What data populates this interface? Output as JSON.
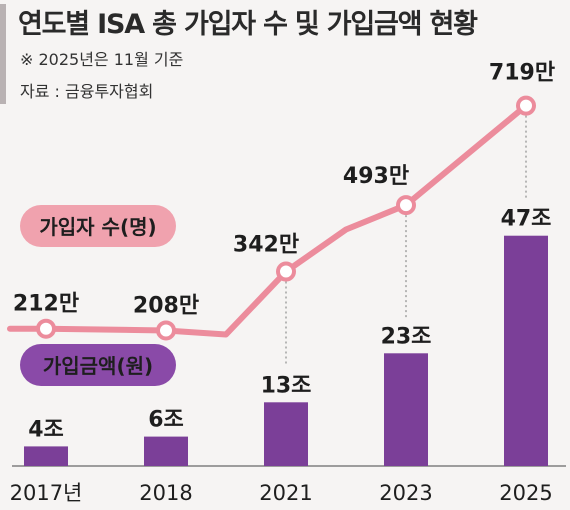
{
  "header": {
    "title": "연도별 ISA 총 가입자 수 및 가입금액 현황",
    "note": "※ 2025년은 11월 기준",
    "source": "자료 : 금융투자협회"
  },
  "chart_data": {
    "type": "bar",
    "categories": [
      "2017년",
      "2018",
      "2021",
      "2023",
      "2025"
    ],
    "series": [
      {
        "name": "가입자 수(명)",
        "type": "line",
        "values": [
          212,
          208,
          342,
          493,
          719
        ],
        "labels": [
          "212만",
          "208만",
          "342만",
          "493만",
          "719만"
        ],
        "color": "#ec8c9c"
      },
      {
        "name": "가입금액(원)",
        "type": "bar",
        "values": [
          4,
          6,
          13,
          23,
          47
        ],
        "labels": [
          "4조",
          "6조",
          "13조",
          "23조",
          "47조"
        ],
        "color": "#7b3f98"
      }
    ],
    "legend": "left",
    "grid": false
  },
  "colors": {
    "bar": "#7b3f98",
    "line": "#ec8c9c",
    "legend_line_bg": "#f0a2ae",
    "legend_bar_bg": "#8a4aa8"
  }
}
